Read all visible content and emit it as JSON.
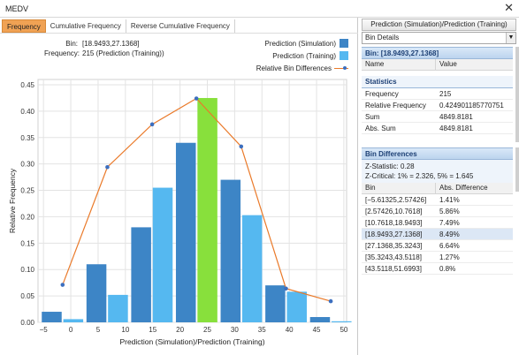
{
  "window": {
    "title": "MEDV",
    "close_glyph": "✕"
  },
  "tabs": [
    {
      "label": "Frequency",
      "active": true
    },
    {
      "label": "Cumulative Frequency",
      "active": false
    },
    {
      "label": "Reverse Cumulative Frequency",
      "active": false
    }
  ],
  "bin_info": {
    "bin_label": "Bin:",
    "bin_value": "[18.9493,27.1368]",
    "freq_label": "Frequency:",
    "freq_value": "215 (Prediction (Training))"
  },
  "legend": {
    "items": [
      {
        "label": "Prediction (Simulation)",
        "color": "#3d85c6"
      },
      {
        "label": "Prediction (Training)",
        "color": "#55b8f0"
      },
      {
        "label": "Relative Bin Differences",
        "line_color": "#ea7a2a",
        "marker_color": "#3c6fbf"
      }
    ]
  },
  "chart_data": {
    "type": "bar",
    "xlabel": "Prediction (Simulation)/Prediction (Training)",
    "ylabel": "Relative Frequency",
    "xlim": [
      -6,
      50.5
    ],
    "ylim": [
      0,
      0.46
    ],
    "x_ticks": [
      -5,
      0,
      5,
      10,
      15,
      20,
      25,
      30,
      35,
      40,
      45,
      50
    ],
    "y_ticks": [
      0.0,
      0.05,
      0.1,
      0.15,
      0.2,
      0.25,
      0.3,
      0.35,
      0.4,
      0.45
    ],
    "y_tick_labels": [
      "0.00",
      "0.05",
      "0.10",
      "0.15",
      "0.20",
      "0.25",
      "0.30",
      "0.35",
      "0.40",
      "0.45"
    ],
    "grid": true,
    "bins": [
      {
        "from": -5.61325,
        "to": 2.57426,
        "simulation": 0.02,
        "training": 0.006
      },
      {
        "from": 2.57426,
        "to": 10.7618,
        "simulation": 0.11,
        "training": 0.052
      },
      {
        "from": 10.7618,
        "to": 18.9493,
        "simulation": 0.18,
        "training": 0.255
      },
      {
        "from": 18.9493,
        "to": 27.1368,
        "simulation": 0.34,
        "training": 0.4249
      },
      {
        "from": 27.1368,
        "to": 35.3243,
        "simulation": 0.27,
        "training": 0.203
      },
      {
        "from": 35.3243,
        "to": 43.5118,
        "simulation": 0.07,
        "training": 0.058
      },
      {
        "from": 43.5118,
        "to": 51.6993,
        "simulation": 0.01,
        "training": 0.002
      }
    ],
    "selected_bin_index": 3,
    "selected_color": "#88e03c",
    "series": [
      {
        "name": "Prediction (Simulation)",
        "color": "#3d85c6"
      },
      {
        "name": "Prediction (Training)",
        "color": "#55b8f0"
      }
    ],
    "line_series": {
      "name": "Relative Bin Differences",
      "color": "#ea7a2a",
      "marker_color": "#3c6fbf",
      "points": [
        {
          "x": -1.5,
          "y": 0.071
        },
        {
          "x": 6.7,
          "y": 0.294
        },
        {
          "x": 14.9,
          "y": 0.375
        },
        {
          "x": 23.0,
          "y": 0.424
        },
        {
          "x": 31.2,
          "y": 0.333
        },
        {
          "x": 39.4,
          "y": 0.064
        },
        {
          "x": 47.6,
          "y": 0.04
        }
      ]
    }
  },
  "right_panel": {
    "mode_button": "Prediction (Simulation)/Prediction (Training)",
    "combo_value": "Bin Details",
    "bin_header": "Bin: [18.9493,27.1368]",
    "columns": {
      "name": "Name",
      "value": "Value"
    },
    "statistics_title": "Statistics",
    "stats": [
      {
        "name": "Frequency",
        "value": "215"
      },
      {
        "name": "Relative Frequency",
        "value": "0.424901185770751"
      },
      {
        "name": "Sum",
        "value": "4849.8181"
      },
      {
        "name": "Abs. Sum",
        "value": "4849.8181"
      }
    ],
    "diff_header": "Bin Differences",
    "z_statistic": "Z-Statistic: 0.28",
    "z_critical": "Z-Critical: 1% = 2.326, 5% = 1.645",
    "diff_columns": {
      "bin": "Bin",
      "abs_diff": "Abs. Difference"
    },
    "diffs": [
      {
        "bin": "[−5.61325,2.57426]",
        "diff": "1.41%"
      },
      {
        "bin": "[2.57426,10.7618]",
        "diff": "5.86%"
      },
      {
        "bin": "[10.7618,18.9493]",
        "diff": "7.49%"
      },
      {
        "bin": "[18.9493,27.1368]",
        "diff": "8.49%",
        "selected": true
      },
      {
        "bin": "[27.1368,35.3243]",
        "diff": "6.64%"
      },
      {
        "bin": "[35.3243,43.5118]",
        "diff": "1.27%"
      },
      {
        "bin": "[43.5118,51.6993]",
        "diff": "0.8%"
      }
    ]
  }
}
